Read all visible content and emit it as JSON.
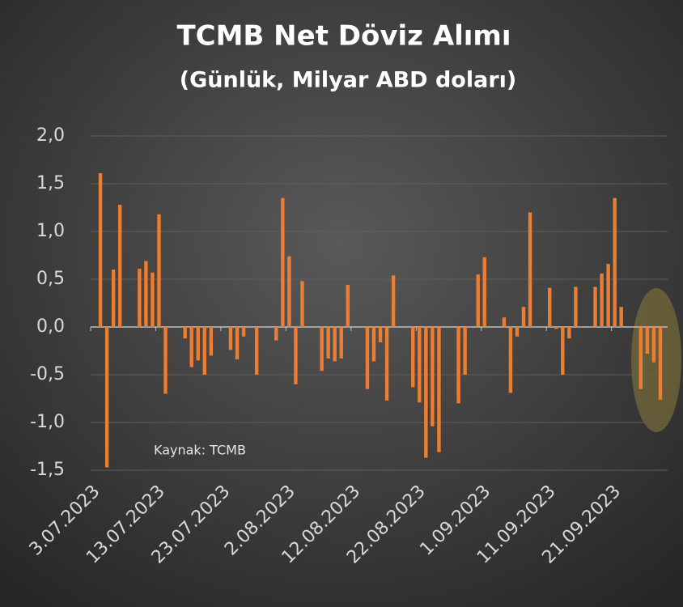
{
  "chart_data": {
    "type": "bar",
    "title": "TCMB Net Döviz Alımı",
    "subtitle": "(Günlük, Milyar ABD doları)",
    "annotation": "Kaynak: TCMB",
    "categories": [
      "3.07.2023",
      null,
      null,
      null,
      null,
      null,
      null,
      null,
      null,
      null,
      "13.07.2023",
      null,
      null,
      null,
      null,
      null,
      null,
      null,
      null,
      null,
      "23.07.2023",
      null,
      null,
      null,
      null,
      null,
      null,
      null,
      null,
      null,
      "2.08.2023",
      null,
      null,
      null,
      null,
      null,
      null,
      null,
      null,
      null,
      "12.08.2023",
      null,
      null,
      null,
      null,
      null,
      null,
      null,
      null,
      null,
      "22.08.2023",
      null,
      null,
      null,
      null,
      null,
      null,
      null,
      null,
      null,
      "1.09.2023",
      null,
      null,
      null,
      null,
      null,
      null,
      null,
      null,
      null,
      "11.09.2023",
      null,
      null,
      null,
      null,
      null,
      null,
      null,
      null,
      null,
      "21.09.2023",
      null,
      null,
      null,
      null,
      null,
      null,
      null
    ],
    "values": [
      null,
      1.61,
      -1.47,
      0.6,
      1.28,
      null,
      null,
      0.61,
      0.69,
      0.57,
      1.18,
      -0.7,
      null,
      null,
      -0.12,
      -0.42,
      -0.35,
      -0.5,
      -0.3,
      null,
      null,
      -0.24,
      -0.34,
      -0.1,
      null,
      -0.5,
      null,
      null,
      -0.14,
      1.35,
      0.74,
      -0.6,
      0.48,
      null,
      null,
      -0.46,
      -0.33,
      -0.36,
      -0.33,
      0.44,
      null,
      null,
      -0.65,
      -0.36,
      -0.16,
      -0.77,
      0.54,
      null,
      null,
      -0.63,
      -0.79,
      -1.37,
      -1.04,
      -1.31,
      null,
      null,
      -0.8,
      -0.5,
      null,
      0.55,
      0.73,
      null,
      null,
      0.1,
      -0.69,
      -0.1,
      0.21,
      1.2,
      null,
      null,
      0.41,
      -0.02,
      -0.5,
      -0.12,
      0.42,
      null,
      null,
      0.42,
      0.56,
      0.66,
      1.35,
      0.21,
      null,
      null,
      -0.65,
      -0.28,
      -0.37,
      -0.76
    ],
    "color": "#ed7d31",
    "ylim": [
      -1.5,
      2.0
    ],
    "yticks": [
      {
        "value": -1.5,
        "label": "-1,5"
      },
      {
        "value": -1.0,
        "label": "-1,0"
      },
      {
        "value": -0.5,
        "label": "-0,5"
      },
      {
        "value": 0,
        "label": "0,0"
      },
      {
        "value": 0.5,
        "label": "0,5"
      },
      {
        "value": 1.0,
        "label": "1,0"
      },
      {
        "value": 1.5,
        "label": "1,5"
      },
      {
        "value": 2.0,
        "label": "2,0"
      }
    ],
    "grid": true
  }
}
